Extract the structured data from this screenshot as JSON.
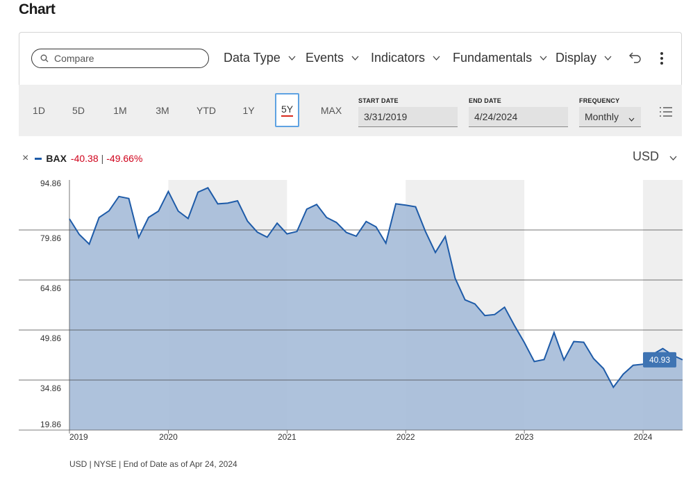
{
  "page": {
    "heading": "Chart"
  },
  "toolbar": {
    "compare_placeholder": "Compare",
    "menus": [
      {
        "label": "Data Type"
      },
      {
        "label": "Events"
      },
      {
        "label": "Indicators"
      },
      {
        "label": "Fundamentals"
      },
      {
        "label": "Display"
      }
    ]
  },
  "range": {
    "periods": [
      "1D",
      "5D",
      "1M",
      "3M",
      "YTD",
      "1Y",
      "5Y",
      "MAX"
    ],
    "active_period": "5Y",
    "start_date_label": "START DATE",
    "start_date": "3/31/2019",
    "end_date_label": "END DATE",
    "end_date": "4/24/2024",
    "frequency_label": "FREQUENCY",
    "frequency": "Monthly"
  },
  "legend": {
    "symbol": "BAX",
    "change": "-40.38",
    "separator": "|",
    "change_pct": "-49.66%"
  },
  "currency": "USD",
  "colors": {
    "line": "#1e5ba8",
    "area": "#a7bdd9",
    "year_band": "#efefef",
    "negative": "#d0021b",
    "last_price_badge": "#3f74b3"
  },
  "chart_data": {
    "type": "area",
    "series": [
      {
        "values": [
          83.2,
          78.5,
          75.6,
          83.6,
          85.6,
          89.9,
          89.3,
          77.6,
          83.6,
          85.5,
          91.4,
          85.5,
          83.3,
          91.2,
          92.5,
          87.7,
          87.9,
          88.6,
          82.5,
          79.2,
          77.7,
          81.9,
          78.7,
          79.4,
          86.1,
          87.5,
          83.6,
          82.1,
          79.1,
          78.0,
          82.4,
          80.8,
          75.9,
          87.7,
          87.3,
          86.8,
          79.4,
          73.1,
          77.9,
          65.4,
          58.9,
          57.7,
          54.2,
          54.5,
          56.7,
          51.2,
          46.1,
          40.4,
          41.0,
          49.1,
          40.9,
          46.4,
          46.2,
          41.3,
          38.3,
          32.7,
          36.6,
          39.3,
          39.6,
          42.6,
          44.3,
          42.3,
          40.93
        ]
      }
    ],
    "x_labels": [
      "2019",
      "2020",
      "2021",
      "2022",
      "2023",
      "2024"
    ],
    "y_ticks": [
      "94.86",
      "79.86",
      "64.86",
      "49.86",
      "34.86",
      "19.86"
    ],
    "ylim": [
      19.86,
      94.86
    ],
    "last_value_label": "40.93",
    "grid": true
  },
  "footer": {
    "note": "USD | NYSE | End of Date as of Apr 24, 2024"
  }
}
